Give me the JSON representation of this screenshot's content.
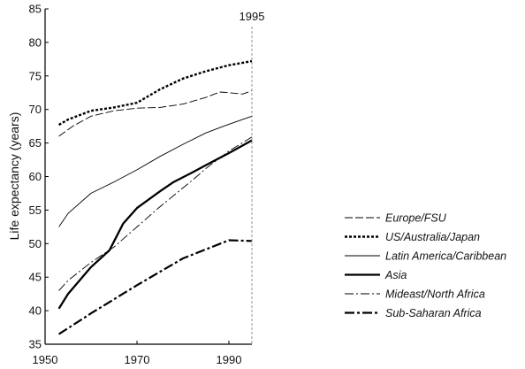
{
  "chart_data": {
    "type": "line",
    "title": "",
    "xlabel": "",
    "ylabel": "Life expectancy (years)",
    "xlim": [
      1950,
      1995
    ],
    "ylim": [
      35,
      85
    ],
    "x_ticks": [
      "1950",
      "1970",
      "1990"
    ],
    "y_ticks": [
      "35",
      "40",
      "45",
      "50",
      "55",
      "60",
      "65",
      "70",
      "75",
      "80",
      "85"
    ],
    "annotation": {
      "label": "1995",
      "x": 1995
    },
    "grid": false,
    "legend_position": "right",
    "series": [
      {
        "name": "Europe/FSU",
        "style": "long-dash-thin",
        "x": [
          1953,
          1956,
          1960,
          1965,
          1970,
          1975,
          1980,
          1985,
          1988,
          1990,
          1993,
          1995
        ],
        "y": [
          66.0,
          67.5,
          69.0,
          69.8,
          70.2,
          70.3,
          70.8,
          71.8,
          72.6,
          72.5,
          72.3,
          72.8
        ]
      },
      {
        "name": "US/Australia/Japan",
        "style": "dotted-thick",
        "x": [
          1953,
          1955,
          1960,
          1965,
          1970,
          1975,
          1980,
          1985,
          1990,
          1995
        ],
        "y": [
          67.7,
          68.5,
          69.8,
          70.3,
          71.0,
          73.0,
          74.6,
          75.7,
          76.6,
          77.2
        ]
      },
      {
        "name": "Latin America/Caribbean",
        "style": "solid-thin",
        "x": [
          1953,
          1955,
          1960,
          1965,
          1970,
          1975,
          1980,
          1985,
          1990,
          1995
        ],
        "y": [
          52.5,
          54.5,
          57.5,
          59.2,
          61.0,
          63.0,
          64.8,
          66.5,
          67.8,
          69.0
        ]
      },
      {
        "name": "Asia",
        "style": "solid-thick",
        "x": [
          1953,
          1955,
          1960,
          1964,
          1967,
          1970,
          1975,
          1978,
          1982,
          1985,
          1990,
          1995
        ],
        "y": [
          40.3,
          42.5,
          46.5,
          49.0,
          53.0,
          55.3,
          57.8,
          59.2,
          60.6,
          61.7,
          63.5,
          65.4
        ]
      },
      {
        "name": "Mideast/North Africa",
        "style": "dash-dot-thin",
        "x": [
          1953,
          1955,
          1960,
          1965,
          1970,
          1975,
          1980,
          1983,
          1985,
          1990,
          1995
        ],
        "y": [
          43.0,
          44.5,
          47.2,
          49.5,
          52.5,
          55.5,
          58.3,
          60.0,
          61.2,
          63.8,
          65.9
        ]
      },
      {
        "name": "Sub-Saharan Africa",
        "style": "dash-dot-thick",
        "x": [
          1953,
          1960,
          1970,
          1980,
          1990,
          1995
        ],
        "y": [
          36.5,
          39.6,
          43.8,
          47.8,
          50.5,
          50.4
        ]
      }
    ]
  }
}
